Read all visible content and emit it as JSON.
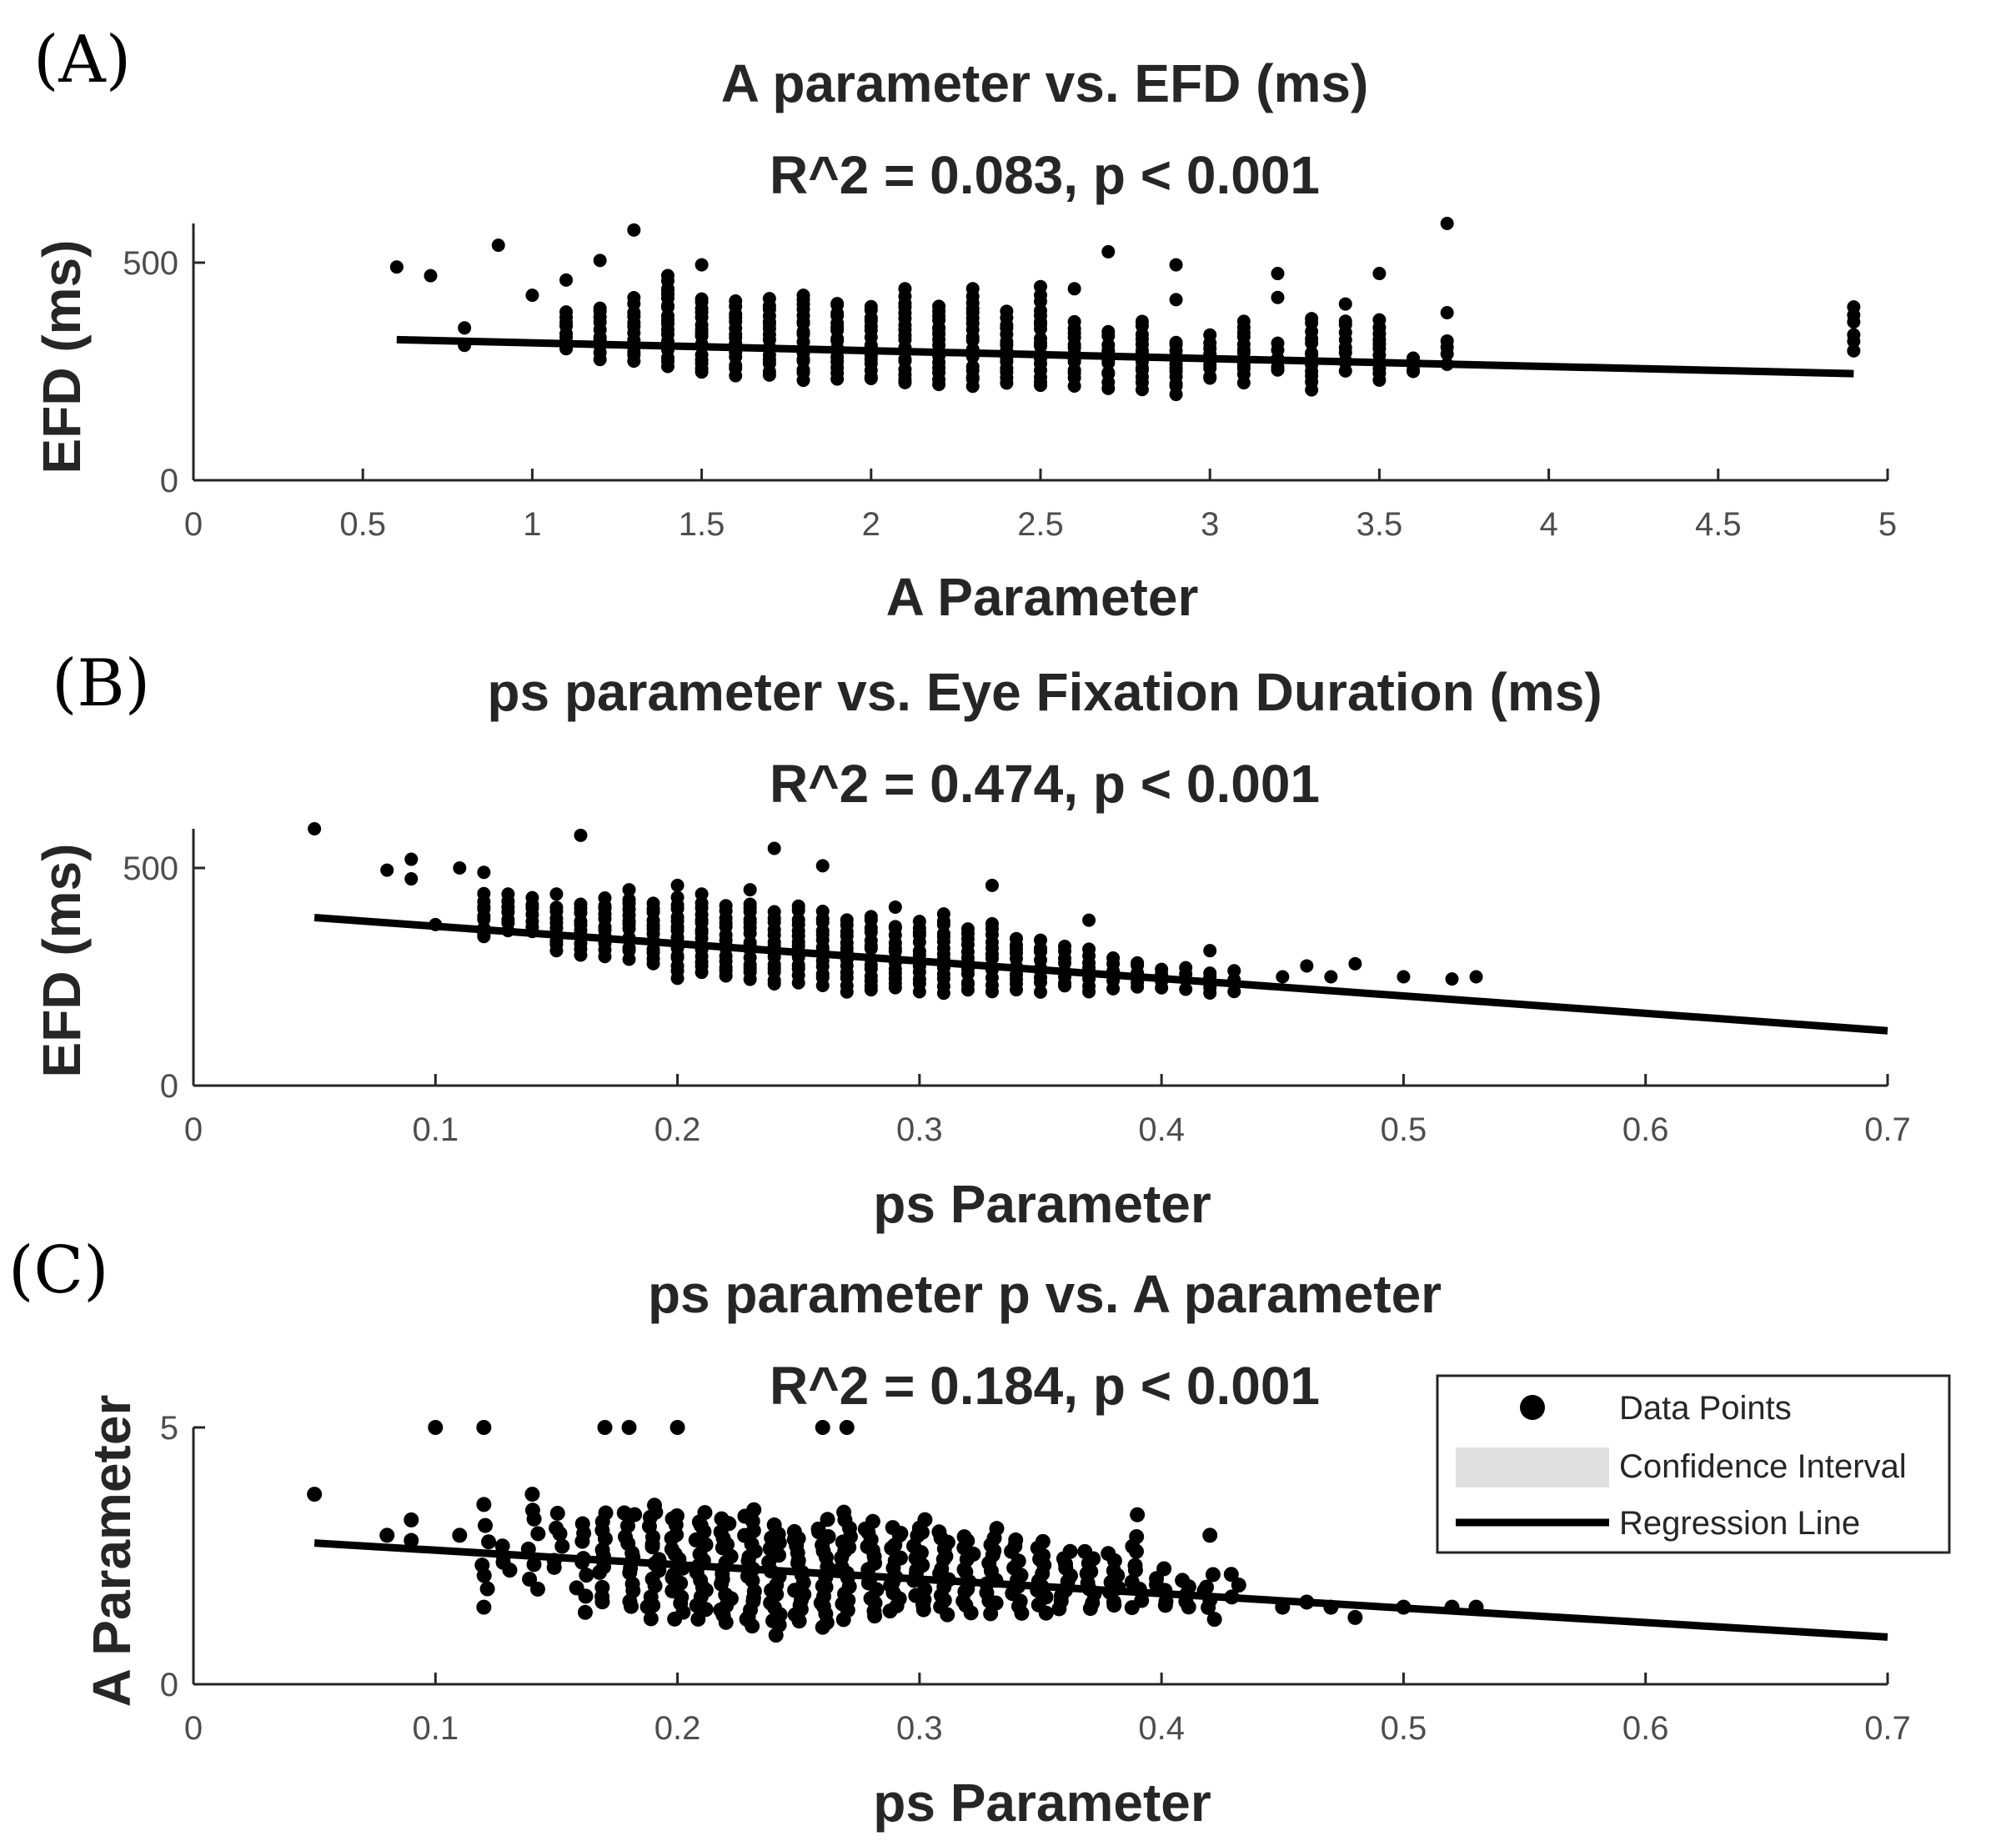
{
  "chart_data": [
    {
      "id": "A",
      "panel_label": "(A)",
      "type": "scatter",
      "title": "A parameter vs. EFD (ms)",
      "subtitle": "R^2 = 0.083, p < 0.001",
      "xlabel": "A Parameter",
      "ylabel": "EFD (ms)",
      "xlim": [
        0,
        5
      ],
      "ylim": [
        0,
        590
      ],
      "xticks": [
        0,
        0.5,
        1,
        1.5,
        2,
        2.5,
        3,
        3.5,
        4,
        4.5,
        5
      ],
      "xtick_labels": [
        "0",
        "0.5",
        "1",
        "1.5",
        "2",
        "2.5",
        "3",
        "3.5",
        "4",
        "4.5",
        "5"
      ],
      "yticks": [
        0,
        500
      ],
      "ytick_labels": [
        "0",
        "500"
      ],
      "regression": {
        "x": [
          0.6,
          4.9
        ],
        "y": [
          323,
          245
        ]
      },
      "columns": [
        {
          "x": 1.1,
          "lo": 300,
          "hi": 390,
          "n": 8
        },
        {
          "x": 1.2,
          "lo": 280,
          "hi": 400,
          "n": 10
        },
        {
          "x": 1.3,
          "lo": 270,
          "hi": 415,
          "n": 12
        },
        {
          "x": 1.4,
          "lo": 262,
          "hi": 465,
          "n": 18
        },
        {
          "x": 1.5,
          "lo": 245,
          "hi": 420,
          "n": 16
        },
        {
          "x": 1.6,
          "lo": 245,
          "hi": 410,
          "n": 15
        },
        {
          "x": 1.7,
          "lo": 240,
          "hi": 415,
          "n": 16
        },
        {
          "x": 1.8,
          "lo": 235,
          "hi": 415,
          "n": 16
        },
        {
          "x": 1.9,
          "lo": 235,
          "hi": 410,
          "n": 16
        },
        {
          "x": 2.0,
          "lo": 230,
          "hi": 400,
          "n": 15
        },
        {
          "x": 2.1,
          "lo": 220,
          "hi": 420,
          "n": 17
        },
        {
          "x": 2.2,
          "lo": 220,
          "hi": 405,
          "n": 16
        },
        {
          "x": 2.3,
          "lo": 215,
          "hi": 420,
          "n": 17
        },
        {
          "x": 2.4,
          "lo": 220,
          "hi": 385,
          "n": 14
        },
        {
          "x": 2.5,
          "lo": 215,
          "hi": 420,
          "n": 17
        },
        {
          "x": 2.6,
          "lo": 220,
          "hi": 365,
          "n": 13
        },
        {
          "x": 2.7,
          "lo": 215,
          "hi": 340,
          "n": 11
        },
        {
          "x": 2.8,
          "lo": 210,
          "hi": 350,
          "n": 12
        },
        {
          "x": 2.9,
          "lo": 200,
          "hi": 320,
          "n": 11
        },
        {
          "x": 3.0,
          "lo": 230,
          "hi": 330,
          "n": 9
        },
        {
          "x": 3.1,
          "lo": 225,
          "hi": 370,
          "n": 12
        },
        {
          "x": 3.2,
          "lo": 250,
          "hi": 310,
          "n": 5
        },
        {
          "x": 3.3,
          "lo": 210,
          "hi": 370,
          "n": 12
        },
        {
          "x": 3.4,
          "lo": 250,
          "hi": 370,
          "n": 9
        },
        {
          "x": 3.5,
          "lo": 230,
          "hi": 370,
          "n": 11
        },
        {
          "x": 3.6,
          "lo": 250,
          "hi": 280,
          "n": 3
        },
        {
          "x": 3.7,
          "lo": 270,
          "hi": 310,
          "n": 3
        },
        {
          "x": 4.9,
          "lo": 300,
          "hi": 400,
          "n": 6
        }
      ],
      "points": [
        [
          0.6,
          490
        ],
        [
          0.7,
          470
        ],
        [
          0.8,
          350
        ],
        [
          0.8,
          310
        ],
        [
          0.9,
          540
        ],
        [
          1.0,
          425
        ],
        [
          1.1,
          460
        ],
        [
          1.2,
          505
        ],
        [
          1.3,
          575
        ],
        [
          1.4,
          440
        ],
        [
          1.5,
          495
        ],
        [
          1.8,
          425
        ],
        [
          2.1,
          440
        ],
        [
          2.3,
          440
        ],
        [
          2.5,
          445
        ],
        [
          2.6,
          440
        ],
        [
          2.7,
          525
        ],
        [
          2.8,
          365
        ],
        [
          2.9,
          495
        ],
        [
          2.9,
          415
        ],
        [
          3.2,
          475
        ],
        [
          3.2,
          420
        ],
        [
          3.4,
          405
        ],
        [
          3.5,
          475
        ],
        [
          3.6,
          250
        ],
        [
          3.7,
          590
        ],
        [
          3.7,
          385
        ],
        [
          3.7,
          320
        ]
      ]
    },
    {
      "id": "B",
      "panel_label": "(B)",
      "type": "scatter",
      "title": "ps parameter vs. Eye Fixation Duration (ms)",
      "subtitle": "R^2 = 0.474, p < 0.001",
      "xlabel": "ps Parameter",
      "ylabel": "EFD (ms)",
      "xlim": [
        0,
        0.7
      ],
      "ylim": [
        0,
        590
      ],
      "xticks": [
        0,
        0.1,
        0.2,
        0.3,
        0.4,
        0.5,
        0.6,
        0.7
      ],
      "xtick_labels": [
        "0",
        "0.1",
        "0.2",
        "0.3",
        "0.4",
        "0.5",
        "0.6",
        "0.7"
      ],
      "yticks": [
        0,
        500
      ],
      "ytick_labels": [
        "0",
        "500"
      ],
      "regression": {
        "x": [
          0.05,
          0.7
        ],
        "y": [
          386,
          126
        ]
      },
      "columns": [
        {
          "x": 0.12,
          "lo": 340,
          "hi": 440,
          "n": 9
        },
        {
          "x": 0.13,
          "lo": 360,
          "hi": 420,
          "n": 6
        },
        {
          "x": 0.14,
          "lo": 350,
          "hi": 430,
          "n": 7
        },
        {
          "x": 0.15,
          "lo": 310,
          "hi": 410,
          "n": 9
        },
        {
          "x": 0.16,
          "lo": 300,
          "hi": 420,
          "n": 10
        },
        {
          "x": 0.17,
          "lo": 300,
          "hi": 430,
          "n": 11
        },
        {
          "x": 0.18,
          "lo": 295,
          "hi": 430,
          "n": 12
        },
        {
          "x": 0.19,
          "lo": 280,
          "hi": 420,
          "n": 12
        },
        {
          "x": 0.2,
          "lo": 250,
          "hi": 430,
          "n": 15
        },
        {
          "x": 0.21,
          "lo": 260,
          "hi": 420,
          "n": 14
        },
        {
          "x": 0.22,
          "lo": 250,
          "hi": 410,
          "n": 14
        },
        {
          "x": 0.23,
          "lo": 245,
          "hi": 420,
          "n": 15
        },
        {
          "x": 0.24,
          "lo": 230,
          "hi": 400,
          "n": 14
        },
        {
          "x": 0.25,
          "lo": 240,
          "hi": 410,
          "n": 14
        },
        {
          "x": 0.26,
          "lo": 230,
          "hi": 400,
          "n": 14
        },
        {
          "x": 0.27,
          "lo": 220,
          "hi": 380,
          "n": 13
        },
        {
          "x": 0.28,
          "lo": 215,
          "hi": 390,
          "n": 14
        },
        {
          "x": 0.29,
          "lo": 220,
          "hi": 370,
          "n": 13
        },
        {
          "x": 0.3,
          "lo": 220,
          "hi": 380,
          "n": 13
        },
        {
          "x": 0.31,
          "lo": 215,
          "hi": 395,
          "n": 14
        },
        {
          "x": 0.32,
          "lo": 215,
          "hi": 360,
          "n": 12
        },
        {
          "x": 0.33,
          "lo": 220,
          "hi": 370,
          "n": 12
        },
        {
          "x": 0.34,
          "lo": 220,
          "hi": 340,
          "n": 10
        },
        {
          "x": 0.35,
          "lo": 220,
          "hi": 330,
          "n": 9
        },
        {
          "x": 0.36,
          "lo": 225,
          "hi": 320,
          "n": 8
        },
        {
          "x": 0.37,
          "lo": 220,
          "hi": 310,
          "n": 8
        },
        {
          "x": 0.38,
          "lo": 225,
          "hi": 290,
          "n": 6
        },
        {
          "x": 0.39,
          "lo": 225,
          "hi": 285,
          "n": 6
        },
        {
          "x": 0.4,
          "lo": 225,
          "hi": 270,
          "n": 4
        },
        {
          "x": 0.41,
          "lo": 225,
          "hi": 270,
          "n": 4
        },
        {
          "x": 0.42,
          "lo": 210,
          "hi": 260,
          "n": 5
        },
        {
          "x": 0.43,
          "lo": 220,
          "hi": 260,
          "n": 4
        }
      ],
      "points": [
        [
          0.05,
          590
        ],
        [
          0.08,
          495
        ],
        [
          0.09,
          520
        ],
        [
          0.09,
          475
        ],
        [
          0.1,
          370
        ],
        [
          0.11,
          500
        ],
        [
          0.12,
          490
        ],
        [
          0.13,
          440
        ],
        [
          0.15,
          440
        ],
        [
          0.16,
          575
        ],
        [
          0.18,
          450
        ],
        [
          0.2,
          460
        ],
        [
          0.21,
          440
        ],
        [
          0.23,
          450
        ],
        [
          0.24,
          545
        ],
        [
          0.26,
          505
        ],
        [
          0.29,
          410
        ],
        [
          0.33,
          460
        ],
        [
          0.37,
          380
        ],
        [
          0.42,
          310
        ],
        [
          0.45,
          250
        ],
        [
          0.46,
          275
        ],
        [
          0.47,
          250
        ],
        [
          0.48,
          280
        ],
        [
          0.5,
          250
        ],
        [
          0.52,
          245
        ],
        [
          0.53,
          250
        ]
      ]
    },
    {
      "id": "C",
      "panel_label": "(C)",
      "type": "scatter",
      "title": "ps parameter p vs. A parameter",
      "subtitle": "R^2 = 0.184, p < 0.001",
      "xlabel": "ps Parameter",
      "ylabel": "A Parameter",
      "xlim": [
        0,
        0.7
      ],
      "ylim": [
        0,
        5
      ],
      "xticks": [
        0,
        0.1,
        0.2,
        0.3,
        0.4,
        0.5,
        0.6,
        0.7
      ],
      "xtick_labels": [
        "0",
        "0.1",
        "0.2",
        "0.3",
        "0.4",
        "0.5",
        "0.6",
        "0.7"
      ],
      "yticks": [
        0,
        5
      ],
      "ytick_labels": [
        "0",
        "5"
      ],
      "regression": {
        "x": [
          0.05,
          0.7
        ],
        "y": [
          2.75,
          0.92
        ]
      },
      "columns": [
        {
          "x": 0.12,
          "lo": 1.8,
          "hi": 3.0,
          "n": 5
        },
        {
          "x": 0.13,
          "lo": 2.2,
          "hi": 2.7,
          "n": 4
        },
        {
          "x": 0.14,
          "lo": 1.8,
          "hi": 3.4,
          "n": 7
        },
        {
          "x": 0.15,
          "lo": 2.2,
          "hi": 3.3,
          "n": 6
        },
        {
          "x": 0.16,
          "lo": 1.4,
          "hi": 3.2,
          "n": 9
        },
        {
          "x": 0.17,
          "lo": 1.6,
          "hi": 3.4,
          "n": 11
        },
        {
          "x": 0.18,
          "lo": 1.5,
          "hi": 3.4,
          "n": 13
        },
        {
          "x": 0.19,
          "lo": 1.3,
          "hi": 3.5,
          "n": 16
        },
        {
          "x": 0.2,
          "lo": 1.3,
          "hi": 3.3,
          "n": 17
        },
        {
          "x": 0.21,
          "lo": 1.3,
          "hi": 3.3,
          "n": 17
        },
        {
          "x": 0.22,
          "lo": 1.2,
          "hi": 3.2,
          "n": 18
        },
        {
          "x": 0.23,
          "lo": 1.1,
          "hi": 3.4,
          "n": 19
        },
        {
          "x": 0.24,
          "lo": 1.0,
          "hi": 3.1,
          "n": 18
        },
        {
          "x": 0.25,
          "lo": 1.2,
          "hi": 3.0,
          "n": 17
        },
        {
          "x": 0.26,
          "lo": 1.1,
          "hi": 3.2,
          "n": 18
        },
        {
          "x": 0.27,
          "lo": 1.3,
          "hi": 3.3,
          "n": 17
        },
        {
          "x": 0.28,
          "lo": 1.3,
          "hi": 3.2,
          "n": 16
        },
        {
          "x": 0.29,
          "lo": 1.4,
          "hi": 3.1,
          "n": 15
        },
        {
          "x": 0.3,
          "lo": 1.4,
          "hi": 3.2,
          "n": 16
        },
        {
          "x": 0.31,
          "lo": 1.4,
          "hi": 3.0,
          "n": 14
        },
        {
          "x": 0.32,
          "lo": 1.4,
          "hi": 2.9,
          "n": 13
        },
        {
          "x": 0.33,
          "lo": 1.4,
          "hi": 3.0,
          "n": 13
        },
        {
          "x": 0.34,
          "lo": 1.4,
          "hi": 2.8,
          "n": 12
        },
        {
          "x": 0.35,
          "lo": 1.4,
          "hi": 2.8,
          "n": 12
        },
        {
          "x": 0.36,
          "lo": 1.5,
          "hi": 2.6,
          "n": 10
        },
        {
          "x": 0.37,
          "lo": 1.5,
          "hi": 2.6,
          "n": 10
        },
        {
          "x": 0.38,
          "lo": 1.5,
          "hi": 2.5,
          "n": 9
        },
        {
          "x": 0.39,
          "lo": 1.5,
          "hi": 2.9,
          "n": 9
        },
        {
          "x": 0.4,
          "lo": 1.5,
          "hi": 2.2,
          "n": 6
        },
        {
          "x": 0.41,
          "lo": 1.5,
          "hi": 2.0,
          "n": 5
        },
        {
          "x": 0.42,
          "lo": 1.3,
          "hi": 2.1,
          "n": 6
        },
        {
          "x": 0.43,
          "lo": 1.7,
          "hi": 2.1,
          "n": 3
        }
      ],
      "points": [
        [
          0.05,
          3.7
        ],
        [
          0.08,
          2.9
        ],
        [
          0.09,
          3.2
        ],
        [
          0.09,
          2.8
        ],
        [
          0.1,
          5.0
        ],
        [
          0.11,
          2.9
        ],
        [
          0.12,
          5.0
        ],
        [
          0.12,
          3.5
        ],
        [
          0.12,
          1.5
        ],
        [
          0.14,
          3.7
        ],
        [
          0.17,
          5.0
        ],
        [
          0.18,
          5.0
        ],
        [
          0.2,
          5.0
        ],
        [
          0.26,
          5.0
        ],
        [
          0.27,
          5.0
        ],
        [
          0.39,
          3.3
        ],
        [
          0.42,
          2.9
        ],
        [
          0.45,
          1.5
        ],
        [
          0.46,
          1.6
        ],
        [
          0.47,
          1.5
        ],
        [
          0.48,
          1.3
        ],
        [
          0.5,
          1.5
        ],
        [
          0.52,
          1.5
        ],
        [
          0.53,
          1.5
        ]
      ]
    }
  ],
  "legend": {
    "position": "right",
    "items": [
      {
        "label": "Data Points",
        "kind": "marker",
        "color": "#000000"
      },
      {
        "label": "Confidence Interval",
        "kind": "patch",
        "color": "#e0e0e0"
      },
      {
        "label": "Regression Line",
        "kind": "line",
        "color": "#000000"
      }
    ]
  },
  "colors": {
    "marker": "#000000",
    "line": "#000000",
    "axis": "#262626",
    "tick_text": "#4d4d4d",
    "ci": "#e0e0e0"
  }
}
